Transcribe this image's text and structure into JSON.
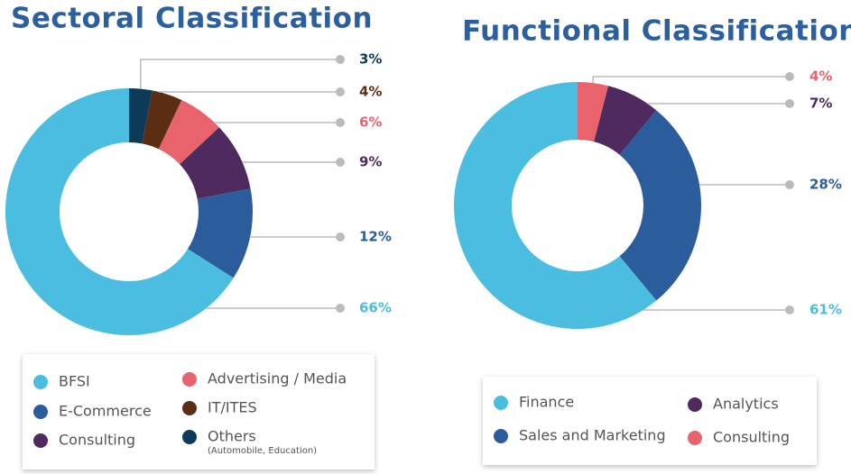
{
  "chart_data": [
    {
      "type": "donut",
      "title": "Sectoral Classification",
      "categories": [
        "Others",
        "IT/ITES",
        "Advertising / Media",
        "Consulting",
        "E-Commerce",
        "BFSI"
      ],
      "values": [
        3,
        4,
        6,
        9,
        12,
        66
      ],
      "value_labels": [
        "3%",
        "4%",
        "6%",
        "9%",
        "12%",
        "66%"
      ],
      "colors": [
        "#0e3a5a",
        "#5b2e14",
        "#e9636c",
        "#4f2a5f",
        "#2b5c9c",
        "#4bbde0"
      ],
      "legend_note": "(Automobile, Education)"
    },
    {
      "type": "donut",
      "title": "Functional Classification",
      "categories": [
        "Consulting",
        "Analytics",
        "Sales and Marketing",
        "Finance"
      ],
      "values": [
        4,
        7,
        28,
        61
      ],
      "value_labels": [
        "4%",
        "7%",
        "28%",
        "61%"
      ],
      "colors": [
        "#e9636c",
        "#4f2a5f",
        "#2b5c9c",
        "#4bbde0"
      ]
    }
  ]
}
